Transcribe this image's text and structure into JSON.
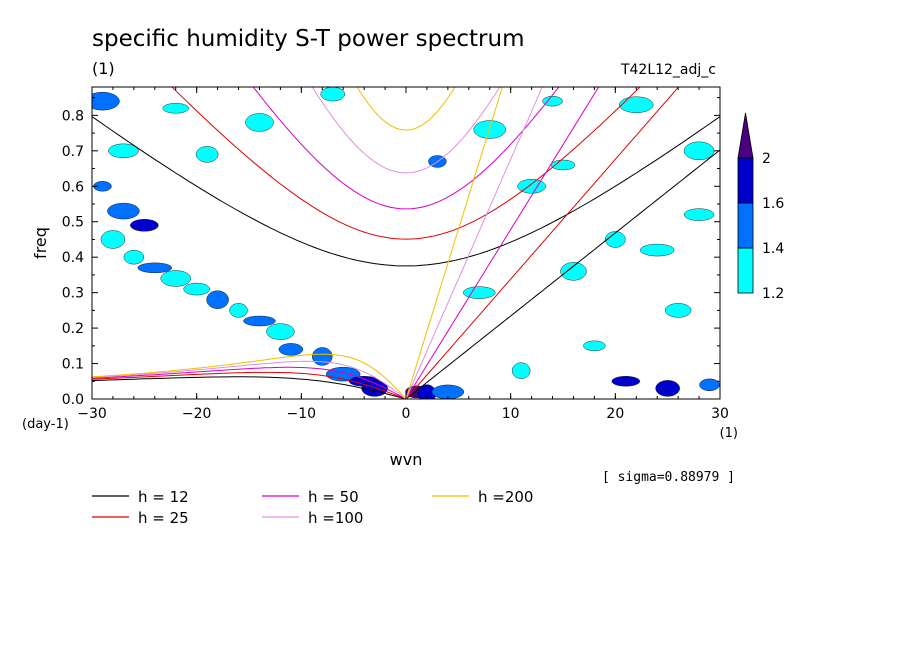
{
  "chart_data": {
    "type": "heatmap",
    "title": "specific humidity S-T power spectrum",
    "subtitle_left": "(1)",
    "subtitle_right": "T42L12_adj_c",
    "xlabel": "wvn",
    "ylabel": "freq",
    "x_unit": "(1)",
    "y_unit": "(day-1)",
    "xlim": [
      -30,
      30
    ],
    "ylim": [
      0,
      0.88
    ],
    "xticks": [
      -30,
      -20,
      -10,
      0,
      10,
      20,
      30
    ],
    "xtick_labels": [
      "−30",
      "−20",
      "−10",
      "0",
      "10",
      "20",
      "30"
    ],
    "yticks": [
      0,
      0.1,
      0.2,
      0.3,
      0.4,
      0.5,
      0.6,
      0.7,
      0.8
    ],
    "ytick_labels": [
      "0.0",
      "0.1",
      "0.2",
      "0.3",
      "0.4",
      "0.5",
      "0.6",
      "0.7",
      "0.8"
    ],
    "sigma_label": "[ sigma=0.88979 ]",
    "colorbar": {
      "levels": [
        1.2,
        1.4,
        1.6,
        2
      ],
      "labels": [
        "1.2",
        "1.4",
        "1.6",
        "2"
      ],
      "colors": [
        "#00ffff",
        "#0070ff",
        "#0000cd",
        "#4b0082"
      ]
    },
    "dispersion_curves": [
      {
        "name": "h = 12",
        "h": 12,
        "color": "#000000"
      },
      {
        "name": "h = 25",
        "h": 25,
        "color": "#e00000"
      },
      {
        "name": "h = 50",
        "h": 50,
        "color": "#d800c0"
      },
      {
        "name": "h =100",
        "h": 100,
        "color": "#e090e0"
      },
      {
        "name": "h =200",
        "h": 200,
        "color": "#f0c000"
      }
    ],
    "shaded_regions": [
      {
        "x": -29,
        "y": 0.6,
        "level": 1.4
      },
      {
        "x": -27,
        "y": 0.53,
        "level": 1.4
      },
      {
        "x": -25,
        "y": 0.49,
        "level": 1.6
      },
      {
        "x": -28,
        "y": 0.45,
        "level": 1.2
      },
      {
        "x": -26,
        "y": 0.4,
        "level": 1.2
      },
      {
        "x": -24,
        "y": 0.37,
        "level": 1.4
      },
      {
        "x": -22,
        "y": 0.34,
        "level": 1.2
      },
      {
        "x": -20,
        "y": 0.31,
        "level": 1.2
      },
      {
        "x": -18,
        "y": 0.28,
        "level": 1.4
      },
      {
        "x": -16,
        "y": 0.25,
        "level": 1.2
      },
      {
        "x": -14,
        "y": 0.22,
        "level": 1.4
      },
      {
        "x": -12,
        "y": 0.19,
        "level": 1.2
      },
      {
        "x": -11,
        "y": 0.14,
        "level": 1.4
      },
      {
        "x": -8,
        "y": 0.12,
        "level": 1.4
      },
      {
        "x": -6,
        "y": 0.07,
        "level": 1.4
      },
      {
        "x": -4,
        "y": 0.05,
        "level": 1.6
      },
      {
        "x": -3,
        "y": 0.03,
        "level": 1.6
      },
      {
        "x": 1,
        "y": 0.02,
        "level": 2
      },
      {
        "x": 2,
        "y": 0.015,
        "level": 1.6
      },
      {
        "x": 4,
        "y": 0.02,
        "level": 1.4
      },
      {
        "x": 21,
        "y": 0.05,
        "level": 1.6
      },
      {
        "x": 25,
        "y": 0.03,
        "level": 1.6
      },
      {
        "x": 29,
        "y": 0.04,
        "level": 1.4
      },
      {
        "x": -29,
        "y": 0.84,
        "level": 1.4
      },
      {
        "x": -27,
        "y": 0.7,
        "level": 1.2
      },
      {
        "x": -22,
        "y": 0.82,
        "level": 1.2
      },
      {
        "x": -19,
        "y": 0.69,
        "level": 1.2
      },
      {
        "x": 3,
        "y": 0.67,
        "level": 1.4
      },
      {
        "x": 8,
        "y": 0.76,
        "level": 1.2
      },
      {
        "x": 12,
        "y": 0.6,
        "level": 1.2
      },
      {
        "x": 15,
        "y": 0.66,
        "level": 1.2
      },
      {
        "x": 20,
        "y": 0.45,
        "level": 1.2
      },
      {
        "x": 24,
        "y": 0.42,
        "level": 1.2
      },
      {
        "x": 28,
        "y": 0.7,
        "level": 1.2
      },
      {
        "x": 26,
        "y": 0.25,
        "level": 1.2
      },
      {
        "x": 18,
        "y": 0.15,
        "level": 1.2
      },
      {
        "x": 11,
        "y": 0.08,
        "level": 1.2
      },
      {
        "x": 7,
        "y": 0.3,
        "level": 1.2
      },
      {
        "x": -14,
        "y": 0.78,
        "level": 1.2
      },
      {
        "x": -7,
        "y": 0.86,
        "level": 1.2
      },
      {
        "x": 14,
        "y": 0.84,
        "level": 1.2
      },
      {
        "x": 22,
        "y": 0.83,
        "level": 1.2
      },
      {
        "x": 28,
        "y": 0.52,
        "level": 1.2
      },
      {
        "x": 16,
        "y": 0.36,
        "level": 1.2
      }
    ]
  }
}
